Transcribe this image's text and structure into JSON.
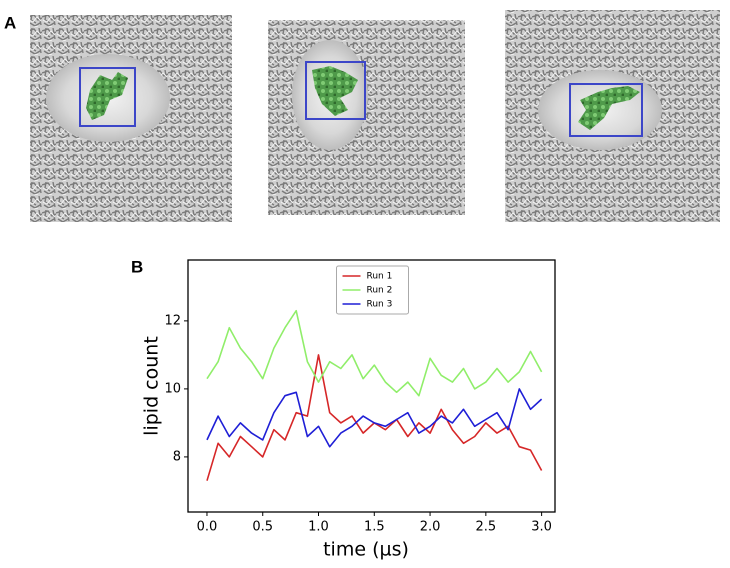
{
  "panel_a_label": "A",
  "panel_b_label": "B",
  "chart_data": {
    "type": "line",
    "xlabel": "time (µs)",
    "ylabel": "lipid count",
    "x": [
      0.0,
      0.1,
      0.2,
      0.3,
      0.4,
      0.5,
      0.6,
      0.7,
      0.8,
      0.9,
      1.0,
      1.1,
      1.2,
      1.3,
      1.4,
      1.5,
      1.6,
      1.7,
      1.8,
      1.9,
      2.0,
      2.1,
      2.2,
      2.3,
      2.4,
      2.5,
      2.6,
      2.7,
      2.8,
      2.9,
      3.0
    ],
    "series": [
      {
        "name": "Run 1",
        "color": "#d62728",
        "values": [
          7.3,
          8.4,
          8.0,
          8.6,
          8.3,
          8.0,
          8.8,
          8.5,
          9.3,
          9.2,
          11.0,
          9.3,
          9.0,
          9.2,
          8.7,
          9.0,
          8.8,
          9.1,
          8.6,
          9.0,
          8.7,
          9.4,
          8.8,
          8.4,
          8.6,
          9.0,
          8.7,
          8.9,
          8.3,
          8.2,
          7.6
        ]
      },
      {
        "name": "Run 2",
        "color": "#90ee6a",
        "values": [
          10.3,
          10.8,
          11.8,
          11.2,
          10.8,
          10.3,
          11.2,
          11.8,
          12.3,
          10.8,
          10.2,
          10.8,
          10.6,
          11.0,
          10.3,
          10.7,
          10.2,
          9.9,
          10.2,
          9.8,
          10.9,
          10.4,
          10.2,
          10.6,
          10.0,
          10.2,
          10.6,
          10.2,
          10.5,
          11.1,
          10.5
        ]
      },
      {
        "name": "Run 3",
        "color": "#1f1fd6",
        "values": [
          8.5,
          9.2,
          8.6,
          9.0,
          8.7,
          8.5,
          9.3,
          9.8,
          9.9,
          8.6,
          8.9,
          8.3,
          8.7,
          8.9,
          9.2,
          9.0,
          8.9,
          9.1,
          9.3,
          8.7,
          8.9,
          9.2,
          9.0,
          9.4,
          8.9,
          9.1,
          9.3,
          8.8,
          10.0,
          9.4,
          9.7
        ]
      }
    ],
    "xlim": [
      -0.17,
      3.12
    ],
    "ylim": [
      6.38,
      13.79
    ],
    "xticks": [
      {
        "value": 0,
        "label": "0.0"
      },
      {
        "value": 0.5,
        "label": "0.5"
      },
      {
        "value": 1,
        "label": "1.0"
      },
      {
        "value": 1.5,
        "label": "1.5"
      },
      {
        "value": 2,
        "label": "2.0"
      },
      {
        "value": 2.5,
        "label": "2.5"
      },
      {
        "value": 3,
        "label": "3.0"
      }
    ],
    "yticks": [
      8,
      10,
      12
    ],
    "legend": "upper center",
    "grid": false
  }
}
